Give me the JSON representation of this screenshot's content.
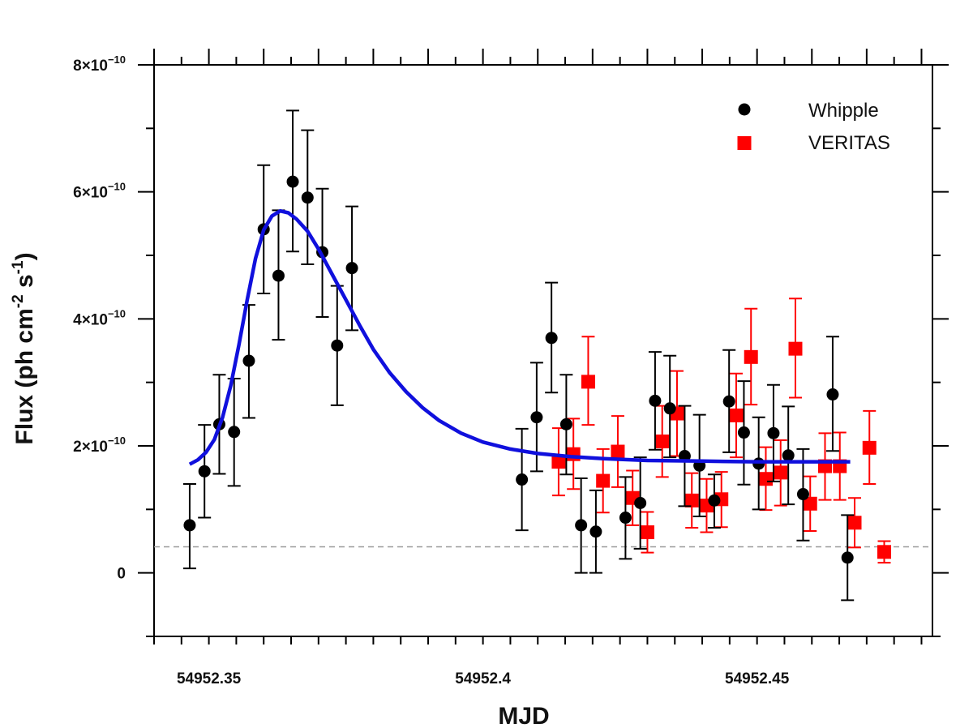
{
  "chart_data": {
    "type": "scatter",
    "title": "",
    "xlabel": "MJD",
    "ylabel": "Flux (ph cm-2 s-1)",
    "ylabel_parts": {
      "main": "Flux (ph cm",
      "exp1": "-2",
      "mid": " s",
      "exp2": "-1",
      "end": ")"
    },
    "xlim": [
      54952.34,
      54952.482
    ],
    "ylim": [
      -1e-10,
      8e-10
    ],
    "x_tick_labels": [
      {
        "value": 54952.35,
        "label": "54952.35"
      },
      {
        "value": 54952.4,
        "label": "54952.4"
      },
      {
        "value": 54952.45,
        "label": "54952.45"
      }
    ],
    "y_tick_labels": [
      {
        "value": 0,
        "mant": "0",
        "exp": ""
      },
      {
        "value": 2e-10,
        "mant": "2×10",
        "exp": "−10"
      },
      {
        "value": 4e-10,
        "mant": "4×10",
        "exp": "−10"
      },
      {
        "value": 6e-10,
        "mant": "6×10",
        "exp": "−10"
      },
      {
        "value": 8e-10,
        "mant": "8×10",
        "exp": "−10"
      }
    ],
    "baseline": {
      "y": 4.1e-11,
      "style": "dashed",
      "color": "#999999"
    },
    "legend": {
      "placement": "top-right",
      "entries": [
        {
          "name": "Whipple",
          "marker": "circle",
          "color": "#000000"
        },
        {
          "name": "VERITAS",
          "marker": "square",
          "color": "#ff0000"
        }
      ]
    },
    "series": [
      {
        "name": "Whipple",
        "marker": "circle",
        "color": "#000000",
        "points": [
          {
            "x": 54952.3465,
            "y": 7.5e-11,
            "lo": 7e-12,
            "hi": 1.4e-10
          },
          {
            "x": 54952.3492,
            "y": 1.6e-10,
            "lo": 8.7e-11,
            "hi": 2.33e-10
          },
          {
            "x": 54952.3519,
            "y": 2.34e-10,
            "lo": 1.56e-10,
            "hi": 3.12e-10
          },
          {
            "x": 54952.3546,
            "y": 2.22e-10,
            "lo": 1.37e-10,
            "hi": 3.06e-10
          },
          {
            "x": 54952.3573,
            "y": 3.34e-10,
            "lo": 2.44e-10,
            "hi": 4.22e-10
          },
          {
            "x": 54952.36,
            "y": 5.41e-10,
            "lo": 4.4e-10,
            "hi": 6.42e-10
          },
          {
            "x": 54952.3627,
            "y": 4.68e-10,
            "lo": 3.67e-10,
            "hi": 5.71e-10
          },
          {
            "x": 54952.3653,
            "y": 6.16e-10,
            "lo": 5.06e-10,
            "hi": 7.28e-10
          },
          {
            "x": 54952.368,
            "y": 5.91e-10,
            "lo": 4.86e-10,
            "hi": 6.97e-10
          },
          {
            "x": 54952.3707,
            "y": 5.05e-10,
            "lo": 4.03e-10,
            "hi": 6.05e-10
          },
          {
            "x": 54952.3734,
            "y": 3.58e-10,
            "lo": 2.64e-10,
            "hi": 4.52e-10
          },
          {
            "x": 54952.3761,
            "y": 4.8e-10,
            "lo": 3.82e-10,
            "hi": 5.77e-10
          },
          {
            "x": 54952.4071,
            "y": 1.47e-10,
            "lo": 6.7e-11,
            "hi": 2.27e-10
          },
          {
            "x": 54952.4098,
            "y": 2.45e-10,
            "lo": 1.6e-10,
            "hi": 3.31e-10
          },
          {
            "x": 54952.4125,
            "y": 3.7e-10,
            "lo": 2.84e-10,
            "hi": 4.57e-10
          },
          {
            "x": 54952.4152,
            "y": 2.34e-10,
            "lo": 1.55e-10,
            "hi": 3.12e-10
          },
          {
            "x": 54952.4179,
            "y": 7.5e-11,
            "lo": 0.0,
            "hi": 1.49e-10
          },
          {
            "x": 54952.4206,
            "y": 6.5e-11,
            "lo": 0.0,
            "hi": 1.3e-10
          },
          {
            "x": 54952.426,
            "y": 8.7e-11,
            "lo": 2.2e-11,
            "hi": 1.51e-10
          },
          {
            "x": 54952.4287,
            "y": 1.1e-10,
            "lo": 3.8e-11,
            "hi": 1.82e-10
          },
          {
            "x": 54952.4314,
            "y": 2.71e-10,
            "lo": 1.94e-10,
            "hi": 3.48e-10
          },
          {
            "x": 54952.4341,
            "y": 2.59e-10,
            "lo": 1.82e-10,
            "hi": 3.42e-10
          },
          {
            "x": 54952.4368,
            "y": 1.84e-10,
            "lo": 1.05e-10,
            "hi": 2.63e-10
          },
          {
            "x": 54952.4395,
            "y": 1.69e-10,
            "lo": 8.9e-11,
            "hi": 2.49e-10
          },
          {
            "x": 54952.4422,
            "y": 1.14e-10,
            "lo": 7.1e-11,
            "hi": 1.55e-10
          },
          {
            "x": 54952.4449,
            "y": 2.7e-10,
            "lo": 1.9e-10,
            "hi": 3.51e-10
          },
          {
            "x": 54952.4476,
            "y": 2.21e-10,
            "lo": 1.39e-10,
            "hi": 3.02e-10
          },
          {
            "x": 54952.4503,
            "y": 1.72e-10,
            "lo": 1e-10,
            "hi": 2.45e-10
          },
          {
            "x": 54952.453,
            "y": 2.2e-10,
            "lo": 1.44e-10,
            "hi": 2.96e-10
          },
          {
            "x": 54952.4557,
            "y": 1.85e-10,
            "lo": 1.08e-10,
            "hi": 2.62e-10
          },
          {
            "x": 54952.4584,
            "y": 1.24e-10,
            "lo": 5.1e-11,
            "hi": 1.95e-10
          },
          {
            "x": 54952.4638,
            "y": 2.81e-10,
            "lo": 1.92e-10,
            "hi": 3.72e-10
          },
          {
            "x": 54952.4665,
            "y": 2.4e-11,
            "lo": -4.3e-11,
            "hi": 9.1e-11
          }
        ]
      },
      {
        "name": "VERITAS",
        "marker": "square",
        "color": "#ff0000",
        "points": [
          {
            "x": 54952.4138,
            "y": 1.75e-10,
            "lo": 1.22e-10,
            "hi": 2.28e-10
          },
          {
            "x": 54952.4165,
            "y": 1.87e-10,
            "lo": 1.32e-10,
            "hi": 2.43e-10
          },
          {
            "x": 54952.4192,
            "y": 3.01e-10,
            "lo": 2.33e-10,
            "hi": 3.72e-10
          },
          {
            "x": 54952.4219,
            "y": 1.45e-10,
            "lo": 9.5e-11,
            "hi": 1.95e-10
          },
          {
            "x": 54952.4246,
            "y": 1.91e-10,
            "lo": 1.35e-10,
            "hi": 2.47e-10
          },
          {
            "x": 54952.4273,
            "y": 1.18e-10,
            "lo": 7.5e-11,
            "hi": 1.61e-10
          },
          {
            "x": 54952.43,
            "y": 6.4e-11,
            "lo": 3.2e-11,
            "hi": 9.6e-11
          },
          {
            "x": 54952.4327,
            "y": 2.07e-10,
            "lo": 1.51e-10,
            "hi": 2.63e-10
          },
          {
            "x": 54952.4354,
            "y": 2.51e-10,
            "lo": 1.84e-10,
            "hi": 3.18e-10
          },
          {
            "x": 54952.4381,
            "y": 1.14e-10,
            "lo": 7.1e-11,
            "hi": 1.57e-10
          },
          {
            "x": 54952.4408,
            "y": 1.06e-10,
            "lo": 6.4e-11,
            "hi": 1.48e-10
          },
          {
            "x": 54952.4435,
            "y": 1.16e-10,
            "lo": 7.2e-11,
            "hi": 1.59e-10
          },
          {
            "x": 54952.4462,
            "y": 2.48e-10,
            "lo": 1.82e-10,
            "hi": 3.14e-10
          },
          {
            "x": 54952.4489,
            "y": 3.4e-10,
            "lo": 2.65e-10,
            "hi": 4.16e-10
          },
          {
            "x": 54952.4516,
            "y": 1.48e-10,
            "lo": 9.9e-11,
            "hi": 1.98e-10
          },
          {
            "x": 54952.4543,
            "y": 1.58e-10,
            "lo": 1.06e-10,
            "hi": 2.09e-10
          },
          {
            "x": 54952.457,
            "y": 3.53e-10,
            "lo": 2.76e-10,
            "hi": 4.32e-10
          },
          {
            "x": 54952.4597,
            "y": 1.09e-10,
            "lo": 6.6e-11,
            "hi": 1.52e-10
          },
          {
            "x": 54952.4624,
            "y": 1.68e-10,
            "lo": 1.15e-10,
            "hi": 2.2e-10
          },
          {
            "x": 54952.4651,
            "y": 1.68e-10,
            "lo": 1.15e-10,
            "hi": 2.21e-10
          },
          {
            "x": 54952.4678,
            "y": 7.9e-11,
            "lo": 4e-11,
            "hi": 1.18e-10
          },
          {
            "x": 54952.4705,
            "y": 1.97e-10,
            "lo": 1.4e-10,
            "hi": 2.55e-10
          },
          {
            "x": 54952.4732,
            "y": 3.3e-11,
            "lo": 1.6e-11,
            "hi": 5e-11
          }
        ]
      }
    ],
    "fit": {
      "name": "fit",
      "type": "line",
      "color": "#1010dd",
      "points": [
        {
          "x": 54952.3465,
          "y": 1.71e-10
        },
        {
          "x": 54952.348,
          "y": 1.78e-10
        },
        {
          "x": 54952.3495,
          "y": 1.9e-10
        },
        {
          "x": 54952.351,
          "y": 2.1e-10
        },
        {
          "x": 54952.3525,
          "y": 2.45e-10
        },
        {
          "x": 54952.354,
          "y": 2.95e-10
        },
        {
          "x": 54952.3555,
          "y": 3.6e-10
        },
        {
          "x": 54952.357,
          "y": 4.3e-10
        },
        {
          "x": 54952.3585,
          "y": 4.95e-10
        },
        {
          "x": 54952.36,
          "y": 5.4e-10
        },
        {
          "x": 54952.3615,
          "y": 5.62e-10
        },
        {
          "x": 54952.363,
          "y": 5.7e-10
        },
        {
          "x": 54952.3645,
          "y": 5.67e-10
        },
        {
          "x": 54952.366,
          "y": 5.57e-10
        },
        {
          "x": 54952.368,
          "y": 5.38e-10
        },
        {
          "x": 54952.37,
          "y": 5.1e-10
        },
        {
          "x": 54952.3725,
          "y": 4.7e-10
        },
        {
          "x": 54952.375,
          "y": 4.3e-10
        },
        {
          "x": 54952.3775,
          "y": 3.9e-10
        },
        {
          "x": 54952.38,
          "y": 3.52e-10
        },
        {
          "x": 54952.383,
          "y": 3.15e-10
        },
        {
          "x": 54952.386,
          "y": 2.85e-10
        },
        {
          "x": 54952.389,
          "y": 2.6e-10
        },
        {
          "x": 54952.392,
          "y": 2.4e-10
        },
        {
          "x": 54952.396,
          "y": 2.2e-10
        },
        {
          "x": 54952.4,
          "y": 2.06e-10
        },
        {
          "x": 54952.405,
          "y": 1.95e-10
        },
        {
          "x": 54952.41,
          "y": 1.88e-10
        },
        {
          "x": 54952.416,
          "y": 1.83e-10
        },
        {
          "x": 54952.422,
          "y": 1.8e-10
        },
        {
          "x": 54952.43,
          "y": 1.77e-10
        },
        {
          "x": 54952.44,
          "y": 1.76e-10
        },
        {
          "x": 54952.45,
          "y": 1.75e-10
        },
        {
          "x": 54952.46,
          "y": 1.75e-10
        },
        {
          "x": 54952.467,
          "y": 1.75e-10
        }
      ]
    }
  }
}
